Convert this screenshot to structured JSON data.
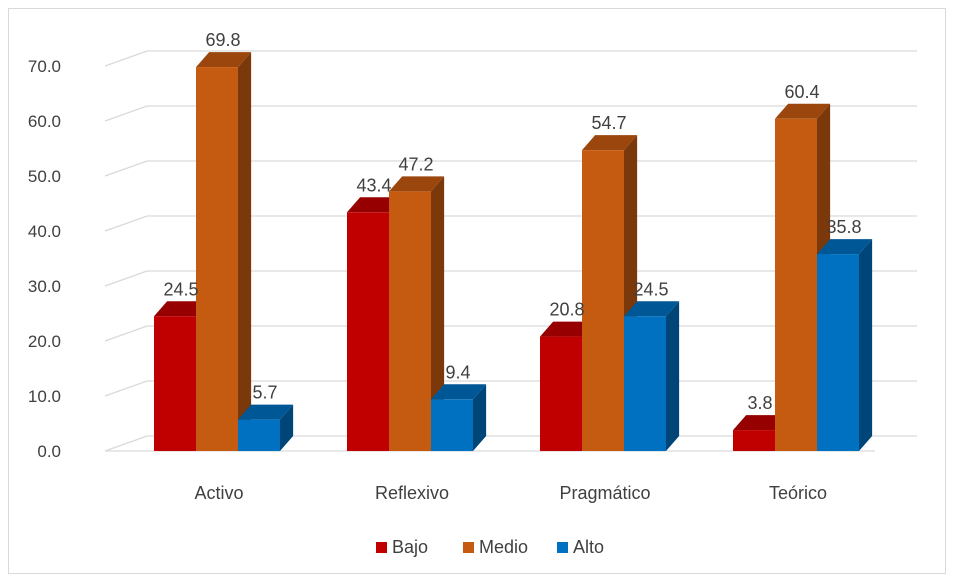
{
  "chart_data": {
    "type": "bar",
    "title": "",
    "xlabel": "",
    "ylabel": "",
    "ylim": [
      0,
      70
    ],
    "y_ticks": [
      "0.0",
      "10.0",
      "20.0",
      "30.0",
      "40.0",
      "50.0",
      "60.0",
      "70.0"
    ],
    "categories": [
      "Activo",
      "Reflexivo",
      "Pragmático",
      "Teórico"
    ],
    "series": [
      {
        "name": "Bajo",
        "color": "#c00000",
        "values": [
          24.5,
          43.4,
          20.8,
          3.8
        ]
      },
      {
        "name": "Medio",
        "color": "#c55a11",
        "values": [
          69.8,
          47.2,
          54.7,
          60.4
        ]
      },
      {
        "name": "Alto",
        "color": "#0070c0",
        "values": [
          5.7,
          9.4,
          24.5,
          35.8
        ]
      }
    ],
    "data_labels": [
      [
        "24.5",
        "69.8",
        "5.7"
      ],
      [
        "43.4",
        "47.2",
        "9.4"
      ],
      [
        "20.8",
        "54.7",
        "24.5"
      ],
      [
        "3.8",
        "60.4",
        "35.8"
      ]
    ],
    "grid": true,
    "legend": "bottom",
    "style": "3d-clustered-column"
  }
}
